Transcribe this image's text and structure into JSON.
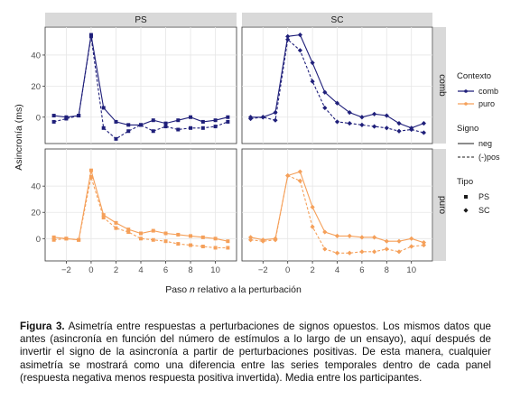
{
  "caption": {
    "label": "Figura 3.",
    "text": " Asimetría entre respuestas a perturbaciones de signos opuestos. Los mismos datos que antes (asincronía en función del número de estímulos a lo largo de un ensayo), aquí después de invertir el signo de la asincronía a partir de perturbaciones positivas. De esta manera, cualquier asimetría se mostrará como una diferencia entre las series temporales dentro de cada panel (respuesta negativa menos respuesta positiva invertida). Media entre los participantes."
  },
  "chart_data": {
    "type": "line",
    "facet_columns": [
      "PS",
      "SC"
    ],
    "facet_rows": [
      "comb",
      "puro"
    ],
    "xlabel_parts": [
      "Paso ",
      "n",
      " relativo a la perturbación"
    ],
    "ylabel": "Asincronía (ms)",
    "x_ticks": [
      -2,
      0,
      2,
      4,
      6,
      8,
      10
    ],
    "x_tick_labels": [
      "−2",
      "0",
      "2",
      "4",
      "6",
      "8",
      "10"
    ],
    "xlim": [
      -3.7,
      11.7
    ],
    "grid": true,
    "legend_placement": "right",
    "rows": {
      "comb": {
        "ylim": [
          -17,
          58
        ],
        "y_ticks": [
          0,
          20,
          40
        ],
        "y_tick_labels": [
          "0",
          "20",
          "40"
        ]
      },
      "puro": {
        "ylim": [
          -17,
          58
        ],
        "y_ticks": [
          0,
          20,
          40
        ],
        "y_tick_labels": [
          "0",
          "20",
          "40"
        ]
      }
    },
    "colors": {
      "comb": "#1f1f7a",
      "puro": "#f5a05a"
    },
    "legend": {
      "contexto_title": "Contexto",
      "contexto_items": [
        "comb",
        "puro"
      ],
      "signo_title": "Signo",
      "signo_items": [
        "neg",
        "(-)pos"
      ],
      "tipo_title": "Tipo",
      "tipo_items": [
        "PS",
        "SC"
      ]
    },
    "x": [
      -3,
      -2,
      -1,
      0,
      1,
      2,
      3,
      4,
      5,
      6,
      7,
      8,
      9,
      10,
      11
    ],
    "series": [
      {
        "panel": [
          "PS",
          "comb"
        ],
        "contexto": "comb",
        "signo": "neg",
        "tipo": "PS",
        "values": [
          1,
          0,
          1,
          53,
          6,
          -3,
          -5,
          -5,
          -2,
          -4,
          -2,
          0,
          -3,
          -2,
          0
        ]
      },
      {
        "panel": [
          "PS",
          "comb"
        ],
        "contexto": "comb",
        "signo": "(-)pos",
        "tipo": "PS",
        "values": [
          -3,
          -1,
          1,
          52,
          -7,
          -14,
          -9,
          -5,
          -9,
          -6,
          -8,
          -7,
          -7,
          -6,
          -3
        ]
      },
      {
        "panel": [
          "SC",
          "comb"
        ],
        "contexto": "comb",
        "signo": "neg",
        "tipo": "SC",
        "values": [
          0,
          0,
          3,
          52,
          53,
          35,
          16,
          9,
          3,
          0,
          2,
          1,
          -4,
          -7,
          -4
        ]
      },
      {
        "panel": [
          "SC",
          "comb"
        ],
        "contexto": "comb",
        "signo": "(-)pos",
        "tipo": "SC",
        "values": [
          -1,
          0,
          -2,
          50,
          43,
          23,
          6,
          -3,
          -4,
          -5,
          -6,
          -7,
          -9,
          -8,
          -10
        ]
      },
      {
        "panel": [
          "PS",
          "puro"
        ],
        "contexto": "puro",
        "signo": "neg",
        "tipo": "PS",
        "values": [
          1,
          0,
          -1,
          52,
          18,
          12,
          7,
          4,
          6,
          4,
          3,
          2,
          1,
          0,
          -2
        ]
      },
      {
        "panel": [
          "PS",
          "puro"
        ],
        "contexto": "puro",
        "signo": "(-)pos",
        "tipo": "PS",
        "values": [
          -1,
          0,
          -1,
          47,
          16,
          8,
          5,
          0,
          -1,
          -2,
          -4,
          -5,
          -6,
          -7,
          -7
        ]
      },
      {
        "panel": [
          "SC",
          "puro"
        ],
        "contexto": "puro",
        "signo": "neg",
        "tipo": "SC",
        "values": [
          1,
          -1,
          0,
          48,
          51,
          24,
          5,
          2,
          2,
          1,
          1,
          -2,
          -2,
          0,
          -3
        ]
      },
      {
        "panel": [
          "SC",
          "puro"
        ],
        "contexto": "puro",
        "signo": "(-)pos",
        "tipo": "SC",
        "values": [
          -1,
          -2,
          -1,
          48,
          44,
          9,
          -8,
          -11,
          -11,
          -10,
          -10,
          -8,
          -10,
          -6,
          -5
        ]
      }
    ]
  }
}
